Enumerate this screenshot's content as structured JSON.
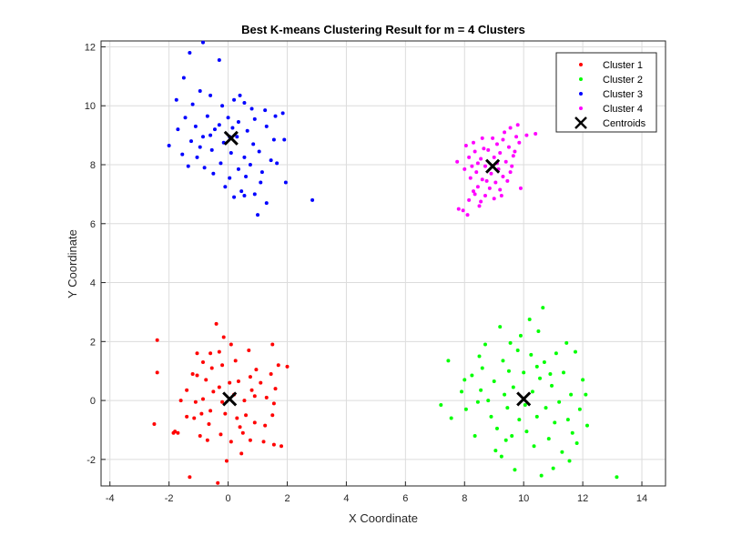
{
  "chart_data": {
    "type": "scatter",
    "title": "Best K-means Clustering Result for m = 4 Clusters",
    "xlabel": "X Coordinate",
    "ylabel": "Y Coordinate",
    "xlim": [
      -4.3,
      14.8
    ],
    "ylim": [
      -2.9,
      12.2
    ],
    "xticks": [
      "-4",
      "-2",
      "0",
      "2",
      "4",
      "6",
      "8",
      "10",
      "12",
      "14"
    ],
    "yticks": [
      "-2",
      "0",
      "2",
      "4",
      "6",
      "8",
      "10",
      "12"
    ],
    "grid": true,
    "legend_position": "top-right",
    "series": [
      {
        "name": "Cluster 1",
        "color": "#ff0000",
        "points": [
          [
            -2.4,
            2.05
          ],
          [
            -2.4,
            0.95
          ],
          [
            -2.5,
            -0.8
          ],
          [
            -1.8,
            -1.05
          ],
          [
            -1.85,
            -1.1
          ],
          [
            -1.3,
            -2.6
          ],
          [
            -0.35,
            -2.8
          ],
          [
            -0.4,
            2.6
          ],
          [
            -0.15,
            2.15
          ],
          [
            -1.05,
            1.6
          ],
          [
            -0.6,
            1.6
          ],
          [
            -0.85,
            1.3
          ],
          [
            -0.3,
            1.65
          ],
          [
            0.1,
            1.9
          ],
          [
            0.7,
            1.7
          ],
          [
            1.5,
            1.9
          ],
          [
            -1.4,
            0.35
          ],
          [
            -1.2,
            0.9
          ],
          [
            -1.05,
            0.85
          ],
          [
            -0.75,
            0.7
          ],
          [
            -0.55,
            1.1
          ],
          [
            -0.2,
            1.2
          ],
          [
            0.05,
            0.6
          ],
          [
            0.35,
            0.65
          ],
          [
            0.75,
            0.8
          ],
          [
            1.1,
            0.6
          ],
          [
            1.45,
            0.9
          ],
          [
            1.7,
            1.2
          ],
          [
            2.0,
            1.15
          ],
          [
            -1.6,
            0.0
          ],
          [
            -1.1,
            -0.05
          ],
          [
            -0.85,
            0.05
          ],
          [
            -0.5,
            0.3
          ],
          [
            -0.2,
            -0.05
          ],
          [
            0.2,
            0.2
          ],
          [
            0.55,
            0.0
          ],
          [
            0.9,
            0.15
          ],
          [
            1.3,
            0.1
          ],
          [
            1.55,
            -0.1
          ],
          [
            -1.4,
            -0.55
          ],
          [
            -1.15,
            -0.6
          ],
          [
            -0.9,
            -0.45
          ],
          [
            -0.6,
            -0.35
          ],
          [
            -0.1,
            -0.45
          ],
          [
            0.3,
            -0.6
          ],
          [
            0.6,
            -0.5
          ],
          [
            0.9,
            -0.75
          ],
          [
            1.25,
            -0.85
          ],
          [
            1.5,
            -0.5
          ],
          [
            -0.95,
            -1.2
          ],
          [
            -0.7,
            -1.35
          ],
          [
            -0.25,
            -1.15
          ],
          [
            0.1,
            -1.4
          ],
          [
            0.5,
            -1.1
          ],
          [
            0.75,
            -1.35
          ],
          [
            1.2,
            -1.4
          ],
          [
            1.8,
            -1.55
          ],
          [
            -0.05,
            -2.05
          ],
          [
            0.45,
            -1.8
          ],
          [
            1.55,
            -1.5
          ],
          [
            0.25,
            1.35
          ],
          [
            -1.7,
            -1.1
          ],
          [
            1.6,
            0.4
          ],
          [
            0.4,
            -0.9
          ],
          [
            -0.3,
            0.45
          ],
          [
            0.95,
            1.05
          ],
          [
            -0.65,
            -0.8
          ],
          [
            0.8,
            0.35
          ]
        ]
      },
      {
        "name": "Cluster 2",
        "color": "#00ff00",
        "points": [
          [
            7.2,
            -0.15
          ],
          [
            7.45,
            1.35
          ],
          [
            7.55,
            -0.6
          ],
          [
            7.9,
            0.3
          ],
          [
            8.0,
            0.7
          ],
          [
            8.05,
            -0.3
          ],
          [
            8.25,
            0.85
          ],
          [
            8.5,
            1.5
          ],
          [
            8.45,
            -0.05
          ],
          [
            8.7,
            1.9
          ],
          [
            8.55,
            0.35
          ],
          [
            8.9,
            -0.55
          ],
          [
            9.0,
            0.65
          ],
          [
            9.05,
            -1.7
          ],
          [
            9.1,
            -0.95
          ],
          [
            9.2,
            2.5
          ],
          [
            9.3,
            1.35
          ],
          [
            9.35,
            0.2
          ],
          [
            9.45,
            -0.25
          ],
          [
            9.5,
            1.0
          ],
          [
            9.6,
            -1.2
          ],
          [
            9.65,
            0.45
          ],
          [
            9.7,
            -2.35
          ],
          [
            9.8,
            1.7
          ],
          [
            9.85,
            -0.65
          ],
          [
            9.9,
            2.2
          ],
          [
            10.0,
            0.95
          ],
          [
            10.05,
            -0.15
          ],
          [
            10.1,
            -1.05
          ],
          [
            10.25,
            1.55
          ],
          [
            10.3,
            0.3
          ],
          [
            10.35,
            -1.55
          ],
          [
            10.45,
            -0.55
          ],
          [
            10.5,
            2.35
          ],
          [
            10.55,
            0.75
          ],
          [
            10.6,
            -2.55
          ],
          [
            10.65,
            3.15
          ],
          [
            10.7,
            1.3
          ],
          [
            10.75,
            -0.25
          ],
          [
            10.85,
            -1.3
          ],
          [
            10.95,
            0.5
          ],
          [
            11.05,
            -0.75
          ],
          [
            11.1,
            1.6
          ],
          [
            11.2,
            -0.05
          ],
          [
            11.3,
            -1.75
          ],
          [
            11.35,
            0.95
          ],
          [
            11.45,
            1.95
          ],
          [
            11.5,
            -0.65
          ],
          [
            11.55,
            -2.05
          ],
          [
            11.6,
            0.2
          ],
          [
            11.75,
            1.65
          ],
          [
            11.8,
            -1.45
          ],
          [
            11.9,
            -0.3
          ],
          [
            12.0,
            0.7
          ],
          [
            12.15,
            -0.85
          ],
          [
            13.15,
            -2.6
          ],
          [
            8.35,
            -1.2
          ],
          [
            9.25,
            -1.9
          ],
          [
            10.2,
            2.75
          ],
          [
            11.0,
            -2.3
          ],
          [
            12.1,
            0.2
          ],
          [
            8.8,
            0.0
          ],
          [
            9.55,
            1.95
          ],
          [
            10.9,
            0.9
          ],
          [
            11.65,
            -1.1
          ],
          [
            9.4,
            -1.35
          ],
          [
            10.45,
            1.15
          ],
          [
            8.6,
            1.1
          ]
        ]
      },
      {
        "name": "Cluster 3",
        "color": "#0000ff",
        "points": [
          [
            -0.85,
            12.15
          ],
          [
            -1.3,
            11.8
          ],
          [
            -0.3,
            11.55
          ],
          [
            -1.5,
            10.95
          ],
          [
            -1.75,
            10.2
          ],
          [
            -0.95,
            10.5
          ],
          [
            -0.6,
            10.35
          ],
          [
            0.4,
            10.35
          ],
          [
            0.55,
            10.1
          ],
          [
            -1.2,
            10.05
          ],
          [
            -0.2,
            10.0
          ],
          [
            0.8,
            9.9
          ],
          [
            1.25,
            9.85
          ],
          [
            1.6,
            9.65
          ],
          [
            -1.45,
            9.6
          ],
          [
            -0.7,
            9.65
          ],
          [
            0.0,
            9.6
          ],
          [
            0.35,
            9.45
          ],
          [
            0.9,
            9.55
          ],
          [
            1.85,
            9.75
          ],
          [
            -1.7,
            9.2
          ],
          [
            -1.1,
            9.3
          ],
          [
            -0.45,
            9.2
          ],
          [
            0.15,
            9.25
          ],
          [
            0.65,
            9.15
          ],
          [
            1.3,
            9.3
          ],
          [
            -2.0,
            8.65
          ],
          [
            -1.25,
            8.8
          ],
          [
            -0.85,
            8.95
          ],
          [
            -0.15,
            8.75
          ],
          [
            0.3,
            8.95
          ],
          [
            0.85,
            8.7
          ],
          [
            1.55,
            8.85
          ],
          [
            1.9,
            8.85
          ],
          [
            -1.55,
            8.35
          ],
          [
            -1.05,
            8.25
          ],
          [
            -0.55,
            8.5
          ],
          [
            0.1,
            8.4
          ],
          [
            0.55,
            8.25
          ],
          [
            1.05,
            8.45
          ],
          [
            -1.35,
            7.95
          ],
          [
            -0.8,
            7.9
          ],
          [
            -0.25,
            8.05
          ],
          [
            0.35,
            7.85
          ],
          [
            0.75,
            8.0
          ],
          [
            1.15,
            7.75
          ],
          [
            -0.5,
            7.7
          ],
          [
            0.05,
            7.55
          ],
          [
            0.6,
            7.6
          ],
          [
            1.1,
            7.4
          ],
          [
            1.95,
            7.4
          ],
          [
            -0.1,
            7.25
          ],
          [
            0.45,
            7.1
          ],
          [
            0.9,
            7.0
          ],
          [
            1.3,
            6.7
          ],
          [
            0.2,
            6.9
          ],
          [
            0.55,
            6.95
          ],
          [
            1.0,
            6.3
          ],
          [
            2.85,
            6.8
          ],
          [
            -0.95,
            8.6
          ],
          [
            0.2,
            10.2
          ],
          [
            -0.3,
            9.35
          ],
          [
            1.45,
            8.15
          ],
          [
            0.05,
            8.95
          ],
          [
            -0.6,
            9.0
          ],
          [
            1.65,
            8.05
          ]
        ]
      },
      {
        "name": "Cluster 4",
        "color": "#ff00ff",
        "points": [
          [
            9.8,
            9.35
          ],
          [
            9.55,
            9.25
          ],
          [
            9.35,
            9.1
          ],
          [
            10.1,
            9.0
          ],
          [
            10.4,
            9.05
          ],
          [
            9.75,
            8.95
          ],
          [
            8.65,
            8.55
          ],
          [
            8.95,
            8.9
          ],
          [
            9.1,
            8.7
          ],
          [
            9.3,
            8.85
          ],
          [
            8.3,
            8.75
          ],
          [
            8.05,
            8.65
          ],
          [
            8.6,
            8.9
          ],
          [
            9.5,
            8.6
          ],
          [
            9.85,
            8.75
          ],
          [
            8.35,
            8.45
          ],
          [
            8.8,
            8.5
          ],
          [
            9.2,
            8.4
          ],
          [
            9.65,
            8.3
          ],
          [
            8.15,
            8.25
          ],
          [
            8.55,
            8.2
          ],
          [
            9.0,
            8.25
          ],
          [
            9.4,
            8.1
          ],
          [
            8.25,
            7.95
          ],
          [
            8.7,
            7.95
          ],
          [
            9.15,
            7.85
          ],
          [
            9.6,
            7.95
          ],
          [
            8.4,
            7.75
          ],
          [
            8.9,
            7.7
          ],
          [
            9.3,
            7.6
          ],
          [
            8.2,
            7.55
          ],
          [
            8.6,
            7.5
          ],
          [
            9.05,
            7.4
          ],
          [
            9.45,
            7.45
          ],
          [
            8.45,
            7.25
          ],
          [
            8.85,
            7.2
          ],
          [
            9.2,
            7.15
          ],
          [
            8.35,
            7.0
          ],
          [
            8.7,
            6.95
          ],
          [
            9.0,
            6.85
          ],
          [
            8.15,
            6.8
          ],
          [
            8.55,
            6.75
          ],
          [
            9.9,
            7.2
          ],
          [
            7.8,
            6.5
          ],
          [
            7.95,
            6.45
          ],
          [
            8.1,
            6.3
          ],
          [
            8.5,
            6.6
          ],
          [
            7.75,
            8.1
          ],
          [
            9.7,
            8.45
          ],
          [
            8.3,
            7.1
          ],
          [
            9.1,
            8.05
          ],
          [
            8.75,
            7.45
          ],
          [
            8.0,
            7.85
          ],
          [
            9.55,
            7.75
          ],
          [
            8.45,
            8.05
          ],
          [
            9.25,
            6.95
          ]
        ]
      }
    ],
    "centroids": {
      "name": "Centroids",
      "color": "#000000",
      "points": [
        [
          0.05,
          0.05
        ],
        [
          10.0,
          0.05
        ],
        [
          0.1,
          8.9
        ],
        [
          8.95,
          7.95
        ]
      ]
    }
  }
}
